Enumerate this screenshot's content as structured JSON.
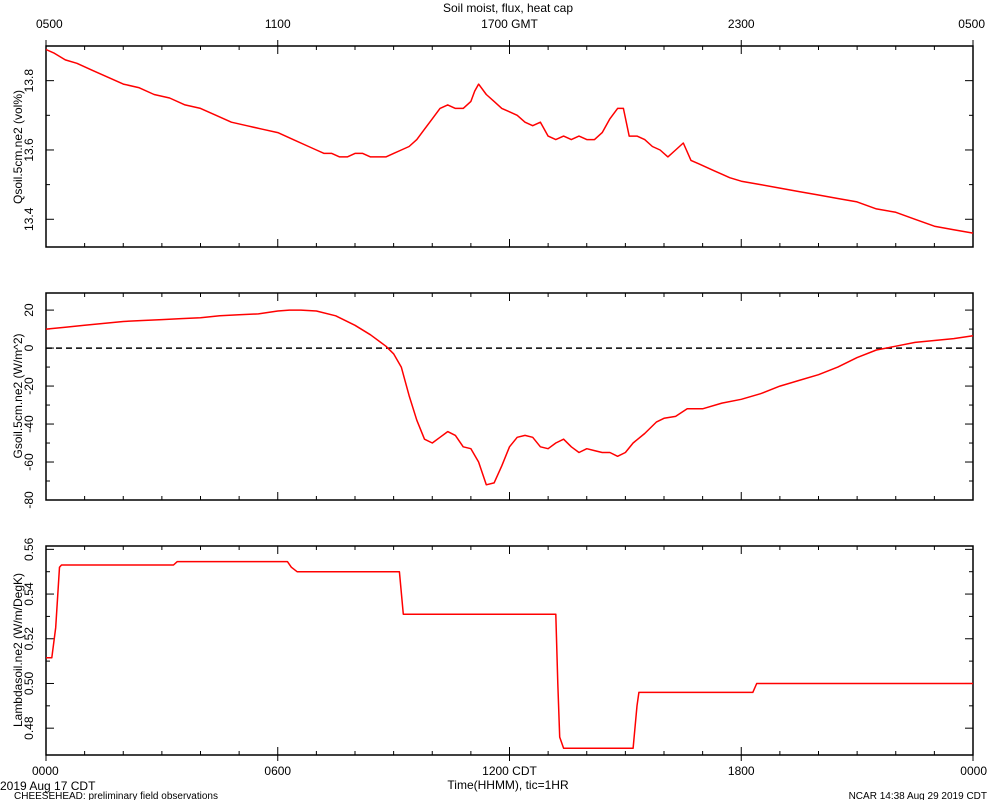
{
  "colors": {
    "series": "#ff0000",
    "axis": "#000000",
    "zero_line": "#000000",
    "background": "#ffffff"
  },
  "figure": {
    "title": "Soil moist, flux, heat cap",
    "date_label": "2019 Aug 17 CDT",
    "x_axis_label": "Time(HHMM), tic=1HR",
    "footer_left": "CHEESEHEAD: preliminary field observations",
    "footer_right": "NCAR 14:38 Aug 29 2019 CDT"
  },
  "chart_data": [
    {
      "type": "line",
      "ylabel": "Qsoil.5cm.ne2 (vol%)",
      "xlim": [
        0,
        24
      ],
      "ylim": [
        13.32,
        13.9
      ],
      "yticks": [
        13.4,
        13.6,
        13.8
      ],
      "ytick_labels": [
        "13.4",
        "13.6",
        "13.8"
      ],
      "top_axis_ticks": [
        0,
        6,
        12,
        18,
        24
      ],
      "top_axis_labels": [
        "0500",
        "1100",
        "1700 GMT",
        "2300",
        "0500"
      ],
      "zero_line": false,
      "series": [
        {
          "x": [
            0,
            0.2,
            0.5,
            0.8,
            1.2,
            1.6,
            2.0,
            2.4,
            2.8,
            3.2,
            3.6,
            4.0,
            4.4,
            4.8,
            5.2,
            5.6,
            6.0,
            6.4,
            6.8,
            7.0,
            7.2,
            7.4,
            7.6,
            7.8,
            8.0,
            8.2,
            8.4,
            8.6,
            8.8,
            9.0,
            9.2,
            9.4,
            9.6,
            9.8,
            10.0,
            10.2,
            10.4,
            10.6,
            10.8,
            11.0,
            11.1,
            11.2,
            11.4,
            11.6,
            11.8,
            12.0,
            12.2,
            12.4,
            12.6,
            12.8,
            13.0,
            13.2,
            13.4,
            13.6,
            13.8,
            14.0,
            14.2,
            14.4,
            14.6,
            14.8,
            14.95,
            15.1,
            15.3,
            15.5,
            15.7,
            15.9,
            16.1,
            16.3,
            16.5,
            16.7,
            16.9,
            17.1,
            17.3,
            17.5,
            17.7,
            18.0,
            18.5,
            19.0,
            19.5,
            20.0,
            20.5,
            21.0,
            21.5,
            22.0,
            22.5,
            23.0,
            23.5,
            24.0
          ],
          "y": [
            13.89,
            13.88,
            13.86,
            13.85,
            13.83,
            13.81,
            13.79,
            13.78,
            13.76,
            13.75,
            13.73,
            13.72,
            13.7,
            13.68,
            13.67,
            13.66,
            13.65,
            13.63,
            13.61,
            13.6,
            13.59,
            13.59,
            13.58,
            13.58,
            13.59,
            13.59,
            13.58,
            13.58,
            13.58,
            13.59,
            13.6,
            13.61,
            13.63,
            13.66,
            13.69,
            13.72,
            13.73,
            13.72,
            13.72,
            13.74,
            13.77,
            13.79,
            13.76,
            13.74,
            13.72,
            13.71,
            13.7,
            13.68,
            13.67,
            13.68,
            13.64,
            13.63,
            13.64,
            13.63,
            13.64,
            13.63,
            13.63,
            13.65,
            13.69,
            13.72,
            13.72,
            13.64,
            13.64,
            13.63,
            13.61,
            13.6,
            13.58,
            13.6,
            13.62,
            13.57,
            13.56,
            13.55,
            13.54,
            13.53,
            13.52,
            13.51,
            13.5,
            13.49,
            13.48,
            13.47,
            13.46,
            13.45,
            13.43,
            13.42,
            13.4,
            13.38,
            13.37,
            13.36
          ]
        }
      ]
    },
    {
      "type": "line",
      "ylabel": "Gsoil.5cm.ne2 (W/m^2)",
      "xlim": [
        0,
        24
      ],
      "ylim": [
        -80,
        29
      ],
      "yticks": [
        -80,
        -60,
        -40,
        -20,
        0,
        20
      ],
      "ytick_labels": [
        "-80",
        "-60",
        "-40",
        "-20",
        "0",
        "20"
      ],
      "zero_line": true,
      "series": [
        {
          "x": [
            0,
            0.5,
            1.0,
            1.5,
            2.0,
            2.5,
            3.0,
            3.5,
            4.0,
            4.5,
            5.0,
            5.5,
            6.0,
            6.3,
            6.6,
            7.0,
            7.5,
            8.0,
            8.4,
            8.8,
            9.0,
            9.2,
            9.4,
            9.6,
            9.8,
            10.0,
            10.2,
            10.4,
            10.6,
            10.8,
            11.0,
            11.2,
            11.4,
            11.6,
            11.8,
            12.0,
            12.2,
            12.4,
            12.6,
            12.8,
            13.0,
            13.2,
            13.4,
            13.6,
            13.8,
            14.0,
            14.2,
            14.4,
            14.6,
            14.8,
            15.0,
            15.2,
            15.5,
            15.8,
            16.0,
            16.3,
            16.6,
            17.0,
            17.5,
            18.0,
            18.5,
            19.0,
            19.5,
            20.0,
            20.5,
            21.0,
            21.5,
            22.0,
            22.5,
            23.0,
            23.5,
            24.0
          ],
          "y": [
            10,
            11,
            12,
            13,
            14,
            14.5,
            15,
            15.5,
            16,
            17,
            17.5,
            18,
            19.5,
            20,
            20,
            19.5,
            17,
            12,
            7,
            1,
            -3,
            -10,
            -25,
            -38,
            -48,
            -50,
            -47,
            -44,
            -46,
            -52,
            -53,
            -60,
            -72,
            -71,
            -62,
            -52,
            -47,
            -46,
            -47,
            -52,
            -53,
            -50,
            -48,
            -52,
            -55,
            -53,
            -54,
            -55,
            -55,
            -57,
            -55,
            -50,
            -45,
            -39,
            -37,
            -36,
            -32,
            -32,
            -29,
            -27,
            -24,
            -20,
            -17,
            -14,
            -10,
            -5,
            -1,
            1,
            3,
            4,
            5,
            6.5
          ]
        }
      ]
    },
    {
      "type": "line",
      "ylabel": "Lambdasoil.ne2 (W/m/DegK)",
      "xlim": [
        0,
        24
      ],
      "ylim": [
        0.468,
        0.5615
      ],
      "yticks": [
        0.48,
        0.5,
        0.52,
        0.54,
        0.56
      ],
      "ytick_labels": [
        "0.48",
        "0.50",
        "0.52",
        "0.54",
        "0.56"
      ],
      "bottom_axis_ticks": [
        0,
        6,
        12,
        18,
        24
      ],
      "bottom_axis_labels": [
        "0000",
        "0600",
        "1200 CDT",
        "1800",
        "0000"
      ],
      "zero_line": false,
      "series": [
        {
          "x": [
            0,
            0.15,
            0.25,
            0.35,
            0.4,
            3.3,
            3.4,
            6.25,
            6.35,
            6.5,
            9.15,
            9.25,
            13.2,
            13.25,
            13.3,
            13.4,
            15.2,
            15.3,
            15.35,
            18.3,
            18.4,
            24.0
          ],
          "y": [
            0.5115,
            0.5115,
            0.525,
            0.552,
            0.553,
            0.553,
            0.5545,
            0.5545,
            0.552,
            0.55,
            0.55,
            0.531,
            0.531,
            0.5,
            0.476,
            0.471,
            0.471,
            0.49,
            0.496,
            0.496,
            0.5,
            0.5
          ]
        }
      ]
    }
  ]
}
